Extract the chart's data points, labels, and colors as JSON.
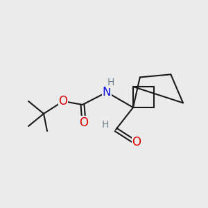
{
  "bg_color": "#ebebeb",
  "bond_color": "#1a1a1a",
  "bond_width": 1.5,
  "atom_colors": {
    "N": "#1010e0",
    "O": "#dd0000",
    "C": "#1a1a1a",
    "H_on_N": "#708090",
    "H_on_CHO": "#708090"
  },
  "font_size_atom": 11,
  "font_size_H": 9
}
